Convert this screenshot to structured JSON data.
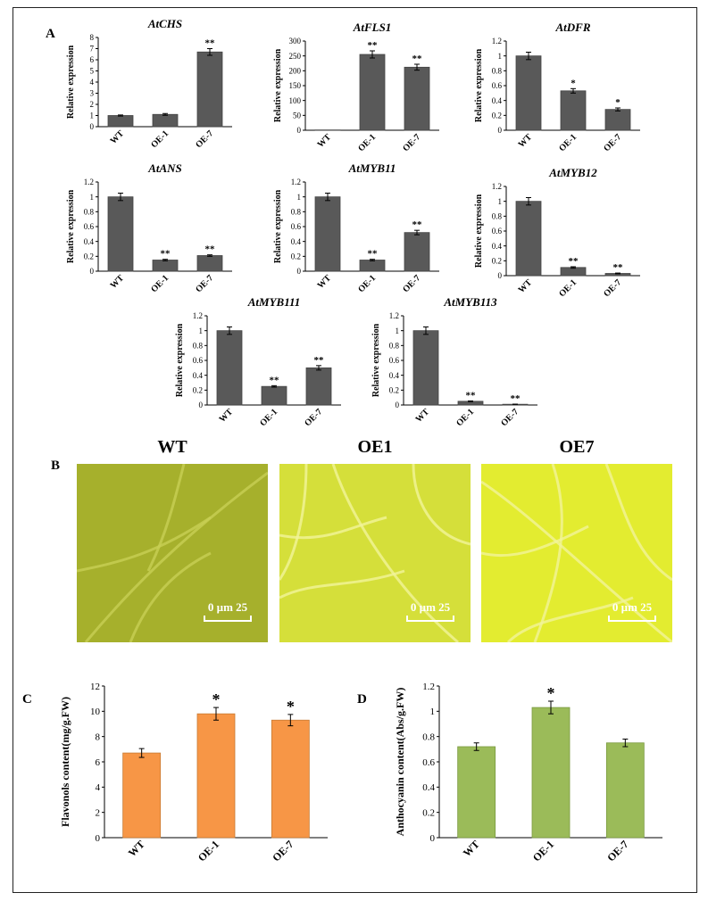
{
  "panels": {
    "a": "A",
    "b": "B",
    "c": "C",
    "d": "D"
  },
  "chart_data": [
    {
      "type": "bar",
      "title": "AtCHS",
      "ylabel": "Relative expression",
      "categories": [
        "WT",
        "OE-1",
        "OE-7"
      ],
      "values": [
        1.0,
        1.1,
        6.7
      ],
      "errors": [
        0.05,
        0.08,
        0.3
      ],
      "significance": [
        "",
        "",
        "**"
      ],
      "ylim": [
        0,
        8
      ],
      "yticks": [
        0,
        1,
        2,
        3,
        4,
        5,
        6,
        7,
        8
      ],
      "color": "#595959"
    },
    {
      "type": "bar",
      "title": "AtFLS1",
      "ylabel": "Relative expression",
      "categories": [
        "WT",
        "OE-1",
        "OE-7"
      ],
      "values": [
        1,
        255,
        212
      ],
      "errors": [
        0,
        12,
        10
      ],
      "significance": [
        "",
        "**",
        "**"
      ],
      "ylim": [
        0,
        300
      ],
      "yticks": [
        0,
        50,
        100,
        150,
        200,
        250,
        300
      ],
      "color": "#595959"
    },
    {
      "type": "bar",
      "title": "AtDFR",
      "ylabel": "Relative expression",
      "categories": [
        "WT",
        "OE-1",
        "OE-7"
      ],
      "values": [
        1.0,
        0.53,
        0.28
      ],
      "errors": [
        0.05,
        0.03,
        0.02
      ],
      "significance": [
        "",
        "*",
        "*"
      ],
      "ylim": [
        0,
        1.2
      ],
      "yticks": [
        0,
        0.2,
        0.4,
        0.6,
        0.8,
        1,
        1.2
      ],
      "color": "#595959"
    },
    {
      "type": "bar",
      "title": "AtANS",
      "ylabel": "Relative expression",
      "categories": [
        "WT",
        "OE-1",
        "OE-7"
      ],
      "values": [
        1.0,
        0.15,
        0.21
      ],
      "errors": [
        0.05,
        0.01,
        0.01
      ],
      "significance": [
        "",
        "**",
        "**"
      ],
      "ylim": [
        0,
        1.2
      ],
      "yticks": [
        0,
        0.2,
        0.4,
        0.6,
        0.8,
        1,
        1.2
      ],
      "color": "#595959"
    },
    {
      "type": "bar",
      "title": "AtMYB11",
      "ylabel": "Relative expression",
      "categories": [
        "WT",
        "OE-1",
        "OE-7"
      ],
      "values": [
        1.0,
        0.15,
        0.52
      ],
      "errors": [
        0.05,
        0.01,
        0.03
      ],
      "significance": [
        "",
        "**",
        "**"
      ],
      "ylim": [
        0,
        1.2
      ],
      "yticks": [
        0,
        0.2,
        0.4,
        0.6,
        0.8,
        1,
        1.2
      ],
      "color": "#595959"
    },
    {
      "type": "bar",
      "title": "AtMYB12",
      "ylabel": "Relative expression",
      "categories": [
        "WT",
        "OE-1",
        "OE-7"
      ],
      "values": [
        1.0,
        0.11,
        0.03
      ],
      "errors": [
        0.05,
        0.01,
        0.005
      ],
      "significance": [
        "",
        "**",
        "**"
      ],
      "ylim": [
        0,
        1.2
      ],
      "yticks": [
        0,
        0.2,
        0.4,
        0.6,
        0.8,
        1,
        1.2
      ],
      "color": "#595959"
    },
    {
      "type": "bar",
      "title": "AtMYB111",
      "ylabel": "Relative expression",
      "categories": [
        "WT",
        "OE-1",
        "OE-7"
      ],
      "values": [
        1.0,
        0.25,
        0.5
      ],
      "errors": [
        0.05,
        0.01,
        0.03
      ],
      "significance": [
        "",
        "**",
        "**"
      ],
      "ylim": [
        0,
        1.2
      ],
      "yticks": [
        0,
        0.2,
        0.4,
        0.6,
        0.8,
        1,
        1.2
      ],
      "color": "#595959"
    },
    {
      "type": "bar",
      "title": "AtMYB113",
      "ylabel": "Relative expression",
      "categories": [
        "WT",
        "OE-1",
        "OE-7"
      ],
      "values": [
        1.0,
        0.05,
        0.01
      ],
      "errors": [
        0.05,
        0.005,
        0.002
      ],
      "significance": [
        "",
        "**",
        "**"
      ],
      "ylim": [
        0,
        1.2
      ],
      "yticks": [
        0,
        0.2,
        0.4,
        0.6,
        0.8,
        1,
        1.2
      ],
      "color": "#595959"
    },
    {
      "type": "bar",
      "title": "",
      "ylabel": "Flavonols content(mg/g.FW)",
      "categories": [
        "WT",
        "OE-1",
        "OE-7"
      ],
      "values": [
        6.7,
        9.8,
        9.3
      ],
      "errors": [
        0.35,
        0.5,
        0.45
      ],
      "significance": [
        "",
        "*",
        "*"
      ],
      "ylim": [
        0,
        12
      ],
      "yticks": [
        0,
        2,
        4,
        6,
        8,
        10,
        12
      ],
      "color": "#f79646"
    },
    {
      "type": "bar",
      "title": "",
      "ylabel": "Anthocyanin content(Abs/g.FW)",
      "categories": [
        "WT",
        "OE-1",
        "OE-7"
      ],
      "values": [
        0.72,
        1.03,
        0.75
      ],
      "errors": [
        0.03,
        0.05,
        0.03
      ],
      "significance": [
        "",
        "*",
        ""
      ],
      "ylim": [
        0,
        1.2
      ],
      "yticks": [
        0,
        0.2,
        0.4,
        0.6,
        0.8,
        1,
        1.2
      ],
      "color": "#9bbb59"
    }
  ],
  "micrographs": [
    {
      "label": "WT",
      "scale_text": "0   µm 25",
      "tint": "#a6b02c"
    },
    {
      "label": "OE1",
      "scale_text": "0   µm 25",
      "tint": "#d5df3a"
    },
    {
      "label": "OE7",
      "scale_text": "0   µm 25",
      "tint": "#e3ec30"
    }
  ]
}
